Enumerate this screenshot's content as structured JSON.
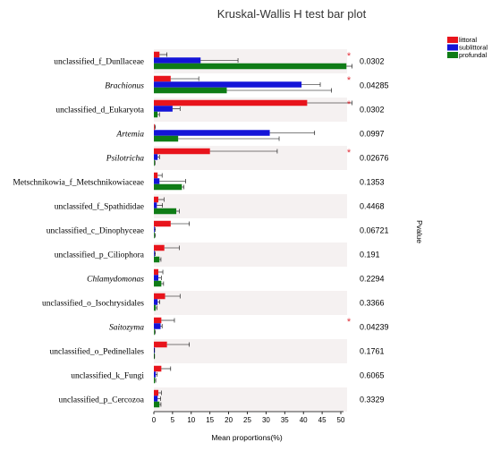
{
  "chart_data": {
    "type": "bar",
    "title": "Kruskal-Wallis H test bar plot",
    "xlabel": "Mean proportions(%)",
    "ylabel_right": "Pvalue",
    "xlim": [
      0,
      50
    ],
    "xticks": [
      "0",
      "5",
      "10",
      "15",
      "20",
      "25",
      "30",
      "35",
      "40",
      "45",
      "50"
    ],
    "xtick_values": [
      0,
      5,
      10,
      15,
      20,
      25,
      30,
      35,
      40,
      45,
      50
    ],
    "legend_position": "top-right",
    "categories": [
      {
        "label": "unclassified_f_Dunllaceae",
        "italic": false,
        "pvalue": "0.0302",
        "significant": true
      },
      {
        "label": "Brachionus",
        "italic": true,
        "pvalue": "0.04285",
        "significant": true
      },
      {
        "label": "unclassified_d_Eukaryota",
        "italic": false,
        "pvalue": "0.0302",
        "significant": true
      },
      {
        "label": "Artemia",
        "italic": true,
        "pvalue": "0.0997",
        "significant": false
      },
      {
        "label": "Psilotricha",
        "italic": true,
        "pvalue": "0.02676",
        "significant": true
      },
      {
        "label": "Metschnikowia_f_Metschnikowiaceae",
        "italic": false,
        "pvalue": "0.1353",
        "significant": false
      },
      {
        "label": "unclassifed_f_Spathididae",
        "italic": false,
        "pvalue": "0.4468",
        "significant": false
      },
      {
        "label": "unclassified_c_Dinophyceae",
        "italic": false,
        "pvalue": "0.06721",
        "significant": false
      },
      {
        "label": "unclassified_p_Ciliophora",
        "italic": false,
        "pvalue": "0.191",
        "significant": false
      },
      {
        "label": "Chlamydomonas",
        "italic": true,
        "pvalue": "0.2294",
        "significant": false
      },
      {
        "label": "unclassified_o_Isochrysidales",
        "italic": false,
        "pvalue": "0.3366",
        "significant": false
      },
      {
        "label": "Saitozyma",
        "italic": true,
        "pvalue": "0.04239",
        "significant": true
      },
      {
        "label": "unclassified_o_Pedinellales",
        "italic": false,
        "pvalue": "0.1761",
        "significant": false
      },
      {
        "label": "unclassified_k_Fungi",
        "italic": false,
        "pvalue": "0.6065",
        "significant": false
      },
      {
        "label": "unclassified_p_Cercozoa",
        "italic": false,
        "pvalue": "0.3329",
        "significant": false
      }
    ],
    "series": [
      {
        "name": "littoral",
        "color": "#e8141c",
        "values": [
          1.5,
          4.5,
          41.0,
          0.2,
          15.0,
          1.0,
          1.2,
          4.5,
          2.8,
          1.2,
          3.0,
          2.0,
          3.5,
          2.0,
          1.2
        ],
        "errors": [
          2.0,
          7.5,
          22.0,
          0.2,
          18.0,
          1.2,
          1.5,
          5.0,
          4.0,
          1.2,
          4.0,
          3.5,
          6.0,
          2.5,
          0.8
        ]
      },
      {
        "name": "sublittoral",
        "color": "#1414d8",
        "values": [
          12.5,
          39.5,
          5.0,
          31.0,
          1.0,
          1.5,
          0.8,
          0.2,
          0.2,
          1.2,
          1.0,
          1.8,
          0.1,
          0.5,
          1.0
        ],
        "errors": [
          10.0,
          5.0,
          2.0,
          12.0,
          0.5,
          7.0,
          1.5,
          0.2,
          0.2,
          0.8,
          0.6,
          0.4,
          0.1,
          0.4,
          0.8
        ]
      },
      {
        "name": "profundal",
        "color": "#0f7c16",
        "values": [
          51.5,
          19.5,
          1.0,
          6.5,
          0.2,
          7.5,
          6.0,
          0.2,
          1.5,
          2.0,
          0.5,
          0.2,
          0.1,
          0.3,
          1.5
        ],
        "errors": [
          2.0,
          28.0,
          0.5,
          27.0,
          0.1,
          0.5,
          0.8,
          0.2,
          0.4,
          0.6,
          0.3,
          0.2,
          0.1,
          0.2,
          0.4
        ]
      }
    ]
  }
}
